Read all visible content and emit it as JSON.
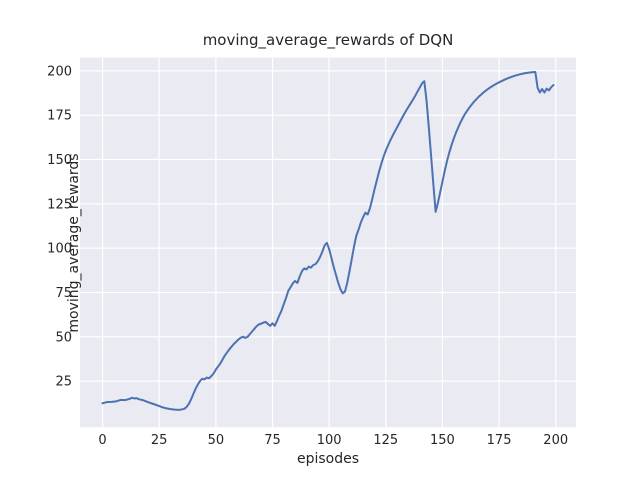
{
  "chart_data": {
    "type": "line",
    "title": "moving_average_rewards of DQN",
    "xlabel": "episodes",
    "ylabel": "moving_average_rewards",
    "x_ticks": [
      0,
      25,
      50,
      75,
      100,
      125,
      150,
      175,
      200
    ],
    "y_ticks": [
      25,
      50,
      75,
      100,
      125,
      150,
      175,
      200
    ],
    "xlim": [
      -9.95,
      208.95
    ],
    "ylim": [
      -1.0,
      207.5
    ],
    "grid": true,
    "legend_position": "none",
    "colors": {
      "line": "#4c72b0",
      "plot_background": "#eaeaf2",
      "grid": "#ffffff",
      "text": "#262626",
      "figure_background": "#ffffff"
    },
    "series": [
      {
        "name": "moving_average_rewards",
        "x": [
          0,
          2,
          4,
          6,
          8,
          10,
          12,
          13,
          14,
          15,
          16,
          18,
          20,
          22,
          24,
          26,
          28,
          30,
          32,
          34,
          36,
          37,
          38,
          39,
          40,
          41,
          42,
          43,
          44,
          45,
          46,
          47,
          48,
          49,
          50,
          52,
          54,
          56,
          58,
          60,
          61,
          62,
          63,
          64,
          65,
          66,
          67,
          68,
          69,
          70,
          71,
          72,
          73,
          74,
          75,
          76,
          77,
          78,
          79,
          80,
          81,
          82,
          83,
          84,
          85,
          86,
          87,
          88,
          89,
          90,
          91,
          92,
          93,
          94,
          95,
          96,
          97,
          98,
          99,
          100,
          101,
          102,
          103,
          104,
          105,
          106,
          107,
          108,
          109,
          110,
          111,
          112,
          113,
          114,
          115,
          116,
          117,
          118,
          119,
          120,
          121,
          122,
          123,
          124,
          125,
          126,
          127,
          128,
          129,
          130,
          131,
          132,
          133,
          134,
          135,
          136,
          137,
          138,
          139,
          140,
          141,
          142,
          143,
          144,
          145,
          146,
          147,
          148,
          149,
          150,
          151,
          152,
          153,
          154,
          155,
          156,
          157,
          158,
          159,
          160,
          162,
          164,
          166,
          168,
          170,
          172,
          174,
          176,
          178,
          180,
          182,
          184,
          186,
          188,
          190,
          191,
          192,
          193,
          194,
          195,
          196,
          197,
          198,
          199
        ],
        "y": [
          12.5,
          13.2,
          13.3,
          13.6,
          14.4,
          14.3,
          15.0,
          15.6,
          15.2,
          15.4,
          14.8,
          14.2,
          13.2,
          12.3,
          11.4,
          10.4,
          9.7,
          9.2,
          8.9,
          8.8,
          9.3,
          10.3,
          12.0,
          14.5,
          17.5,
          20.5,
          23.0,
          25.0,
          26.3,
          26.0,
          27.0,
          26.6,
          27.8,
          29.3,
          31.5,
          35.0,
          39.5,
          43.0,
          46.0,
          48.5,
          49.5,
          50.0,
          49.4,
          50.0,
          51.5,
          53.0,
          54.5,
          56.0,
          57.0,
          57.4,
          58.0,
          58.4,
          57.2,
          56.2,
          57.6,
          56.2,
          59.0,
          62.0,
          64.8,
          68.5,
          72.0,
          76.0,
          78.0,
          80.2,
          81.5,
          80.4,
          84.0,
          87.0,
          88.6,
          88.0,
          89.6,
          89.0,
          90.5,
          91.0,
          92.6,
          95.0,
          98.0,
          101.5,
          103.0,
          99.5,
          94.5,
          89.5,
          85.0,
          80.5,
          76.8,
          74.5,
          75.5,
          80.5,
          87.0,
          94.0,
          101.0,
          107.0,
          110.5,
          114.5,
          117.5,
          120.0,
          119.0,
          122.5,
          127.5,
          133.0,
          138.0,
          143.0,
          147.5,
          151.5,
          155.0,
          158.0,
          160.8,
          163.4,
          165.8,
          168.2,
          170.6,
          173.0,
          175.4,
          177.6,
          179.7,
          181.7,
          183.8,
          186.0,
          188.3,
          190.6,
          193.0,
          194.2,
          183.0,
          168.0,
          152.0,
          136.0,
          120.5,
          125.5,
          131.5,
          137.5,
          143.5,
          149.0,
          153.8,
          158.0,
          161.8,
          165.2,
          168.2,
          171.0,
          173.5,
          175.8,
          179.5,
          182.7,
          185.4,
          187.7,
          189.7,
          191.4,
          192.9,
          194.2,
          195.4,
          196.4,
          197.3,
          198.0,
          198.6,
          199.0,
          199.3,
          199.4,
          190.5,
          187.8,
          189.8,
          187.8,
          190.0,
          189.0,
          190.8,
          192.0
        ]
      }
    ]
  }
}
